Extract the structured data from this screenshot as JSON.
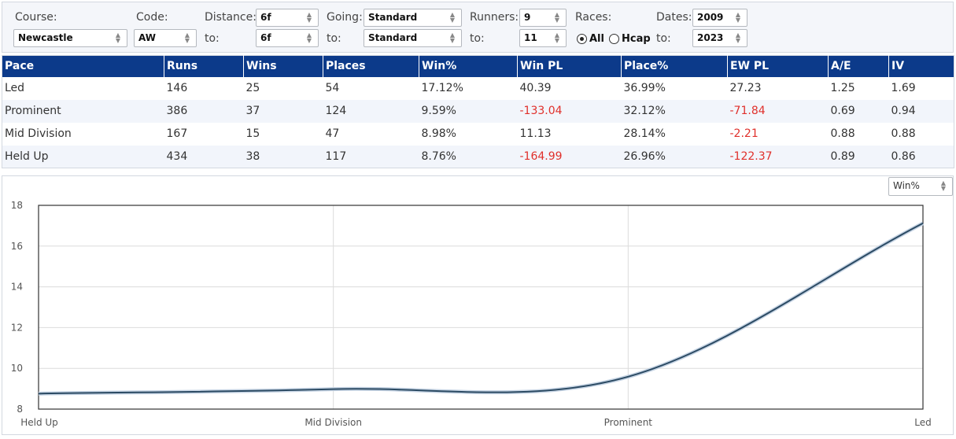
{
  "filters": {
    "course": {
      "label": "Course:",
      "value": "Newcastle"
    },
    "code": {
      "label": "Code:",
      "value": "AW"
    },
    "distance": {
      "label": "Distance:",
      "from": "6f",
      "to_label": "to:",
      "to": "6f"
    },
    "going": {
      "label": "Going:",
      "from": "Standard",
      "to_label": "to:",
      "to": "Standard"
    },
    "runners": {
      "label": "Runners:",
      "from": "9",
      "to_label": "to:",
      "to": "11"
    },
    "races": {
      "label": "Races:",
      "options": [
        {
          "label": "All",
          "checked": true
        },
        {
          "label": "Hcap",
          "checked": false
        }
      ]
    },
    "dates": {
      "label": "Dates:",
      "from": "2009",
      "to_label": "to:",
      "to": "2023"
    }
  },
  "table": {
    "headers": [
      "Pace",
      "Runs",
      "Wins",
      "Places",
      "Win%",
      "Win PL",
      "Place%",
      "EW PL",
      "A/E",
      "IV"
    ],
    "rows": [
      [
        "Led",
        "146",
        "25",
        "54",
        "17.12%",
        "40.39",
        "36.99%",
        "27.23",
        "1.25",
        "1.69"
      ],
      [
        "Prominent",
        "386",
        "37",
        "124",
        "9.59%",
        "-133.04",
        "32.12%",
        "-71.84",
        "0.69",
        "0.94"
      ],
      [
        "Mid Division",
        "167",
        "15",
        "47",
        "8.98%",
        "11.13",
        "28.14%",
        "-2.21",
        "0.88",
        "0.88"
      ],
      [
        "Held Up",
        "434",
        "38",
        "117",
        "8.76%",
        "-164.99",
        "26.96%",
        "-122.37",
        "0.89",
        "0.86"
      ]
    ],
    "negative_color": "#e0302b",
    "header_color": "#0c3a8a"
  },
  "chart_selector": {
    "value": "Win%"
  },
  "chart_data": {
    "type": "line",
    "categories": [
      "Held Up",
      "Mid Division",
      "Prominent",
      "Led"
    ],
    "series": [
      {
        "values": [
          8.76,
          8.98,
          9.59,
          17.12
        ]
      }
    ],
    "ylim": [
      8,
      18
    ],
    "yticks": [
      "8",
      "10",
      "12",
      "14",
      "16",
      "18"
    ],
    "grid": true,
    "line_color": "#2b4a63"
  }
}
